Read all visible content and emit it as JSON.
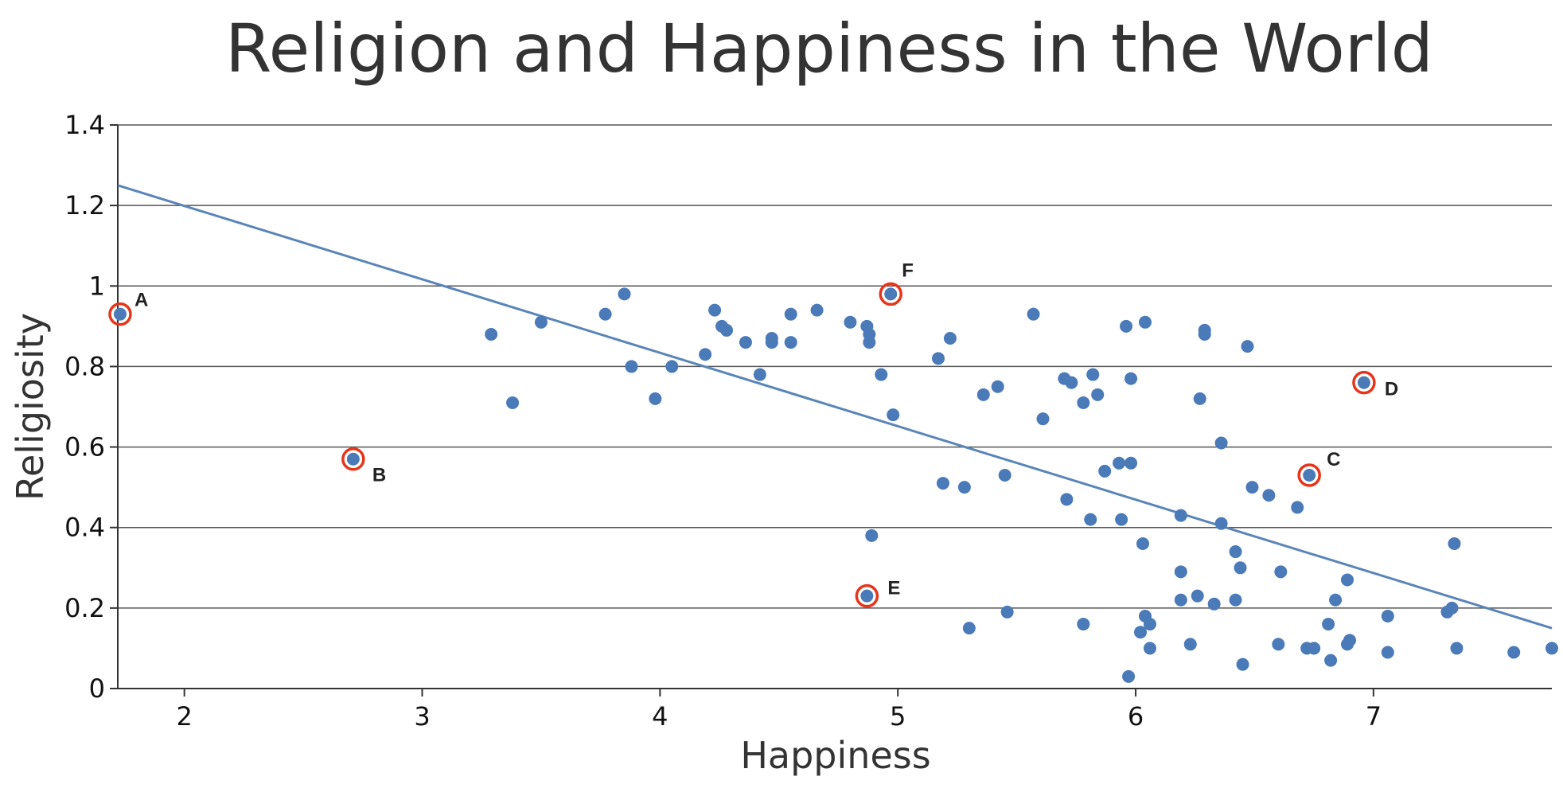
{
  "chart_data": {
    "type": "scatter",
    "title": "Religion and Happiness in the World",
    "xlabel": "Happiness",
    "ylabel": "Religiosity",
    "xlim": [
      1.72,
      7.75
    ],
    "ylim": [
      0,
      1.4
    ],
    "xticks": [
      "2",
      "3",
      "4",
      "5",
      "6",
      "7"
    ],
    "yticks": [
      "0",
      "0.2",
      "0.4",
      "0.6",
      "0.8",
      "1",
      "1.2",
      "1.4"
    ],
    "grid": true,
    "colors": {
      "points": "#4a7ab8",
      "highlight": "#e5361c",
      "trend": "#5a85b8"
    },
    "trendline": {
      "x": [
        1.72,
        7.75
      ],
      "y": [
        1.25,
        0.15
      ]
    },
    "highlighted": [
      {
        "label": "A",
        "x": 1.73,
        "y": 0.93
      },
      {
        "label": "B",
        "x": 2.71,
        "y": 0.57
      },
      {
        "label": "C",
        "x": 6.73,
        "y": 0.53
      },
      {
        "label": "D",
        "x": 6.96,
        "y": 0.76
      },
      {
        "label": "E",
        "x": 4.87,
        "y": 0.23
      },
      {
        "label": "F",
        "x": 4.97,
        "y": 0.98
      }
    ],
    "points": [
      [
        3.29,
        0.88
      ],
      [
        3.38,
        0.71
      ],
      [
        3.5,
        0.91
      ],
      [
        3.77,
        0.93
      ],
      [
        3.85,
        0.98
      ],
      [
        3.88,
        0.8
      ],
      [
        3.98,
        0.72
      ],
      [
        4.05,
        0.8
      ],
      [
        4.19,
        0.83
      ],
      [
        4.23,
        0.94
      ],
      [
        4.26,
        0.9
      ],
      [
        4.28,
        0.89
      ],
      [
        4.36,
        0.86
      ],
      [
        4.42,
        0.78
      ],
      [
        4.47,
        0.87
      ],
      [
        4.47,
        0.86
      ],
      [
        4.55,
        0.93
      ],
      [
        4.55,
        0.86
      ],
      [
        4.66,
        0.94
      ],
      [
        4.8,
        0.91
      ],
      [
        4.87,
        0.9
      ],
      [
        4.88,
        0.88
      ],
      [
        4.88,
        0.86
      ],
      [
        4.89,
        0.38
      ],
      [
        4.93,
        0.78
      ],
      [
        4.98,
        0.68
      ],
      [
        5.17,
        0.82
      ],
      [
        5.19,
        0.51
      ],
      [
        5.22,
        0.87
      ],
      [
        5.28,
        0.5
      ],
      [
        5.3,
        0.15
      ],
      [
        5.36,
        0.73
      ],
      [
        5.42,
        0.75
      ],
      [
        5.45,
        0.53
      ],
      [
        5.46,
        0.19
      ],
      [
        5.57,
        0.93
      ],
      [
        5.61,
        0.67
      ],
      [
        5.7,
        0.77
      ],
      [
        5.71,
        0.47
      ],
      [
        5.73,
        0.76
      ],
      [
        5.78,
        0.71
      ],
      [
        5.78,
        0.16
      ],
      [
        5.81,
        0.42
      ],
      [
        5.82,
        0.78
      ],
      [
        5.84,
        0.73
      ],
      [
        5.87,
        0.54
      ],
      [
        5.93,
        0.56
      ],
      [
        5.94,
        0.42
      ],
      [
        5.96,
        0.9
      ],
      [
        5.97,
        0.03
      ],
      [
        5.98,
        0.77
      ],
      [
        5.98,
        0.56
      ],
      [
        6.02,
        0.14
      ],
      [
        6.03,
        0.36
      ],
      [
        6.04,
        0.91
      ],
      [
        6.04,
        0.18
      ],
      [
        6.06,
        0.1
      ],
      [
        6.06,
        0.16
      ],
      [
        6.19,
        0.43
      ],
      [
        6.19,
        0.29
      ],
      [
        6.19,
        0.22
      ],
      [
        6.23,
        0.11
      ],
      [
        6.26,
        0.23
      ],
      [
        6.27,
        0.72
      ],
      [
        6.29,
        0.89
      ],
      [
        6.29,
        0.88
      ],
      [
        6.33,
        0.21
      ],
      [
        6.36,
        0.61
      ],
      [
        6.36,
        0.41
      ],
      [
        6.42,
        0.34
      ],
      [
        6.42,
        0.22
      ],
      [
        6.44,
        0.3
      ],
      [
        6.45,
        0.06
      ],
      [
        6.47,
        0.85
      ],
      [
        6.49,
        0.5
      ],
      [
        6.56,
        0.48
      ],
      [
        6.6,
        0.11
      ],
      [
        6.61,
        0.29
      ],
      [
        6.68,
        0.45
      ],
      [
        6.72,
        0.1
      ],
      [
        6.75,
        0.1
      ],
      [
        6.81,
        0.16
      ],
      [
        6.82,
        0.07
      ],
      [
        6.84,
        0.22
      ],
      [
        6.89,
        0.27
      ],
      [
        6.89,
        0.11
      ],
      [
        6.9,
        0.12
      ],
      [
        7.06,
        0.18
      ],
      [
        7.06,
        0.09
      ],
      [
        7.31,
        0.19
      ],
      [
        7.33,
        0.2
      ],
      [
        7.34,
        0.36
      ],
      [
        7.35,
        0.1
      ],
      [
        7.59,
        0.09
      ],
      [
        7.75,
        0.1
      ]
    ]
  }
}
